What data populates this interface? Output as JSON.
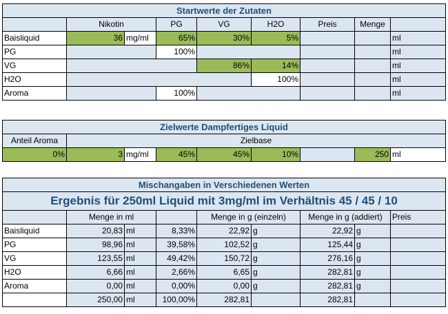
{
  "block1": {
    "title": "Startwerte der Zutaten",
    "headers": [
      "Nikotin",
      "PG",
      "VG",
      "H2O",
      "Preis",
      "Menge"
    ],
    "rows": [
      {
        "name": "Baisliquid",
        "nikotin": "36",
        "unit": "mg/ml",
        "pg": "65%",
        "vg": "30%",
        "h2o": "5%",
        "ml": "ml"
      },
      {
        "name": "PG",
        "pg": "100%",
        "ml": "ml"
      },
      {
        "name": "VG",
        "vg": "86%",
        "h2o": "14%",
        "ml": "ml"
      },
      {
        "name": "H2O",
        "h2o": "100%",
        "ml": "ml"
      },
      {
        "name": "Aroma",
        "pg": "100%",
        "ml": "ml"
      }
    ]
  },
  "block2": {
    "title": "Zielwerte Dampfertiges Liquid",
    "anteil_label": "Anteil Aroma",
    "zielbase_label": "Zielbase",
    "aroma": "0%",
    "nikotin": "3",
    "unit": "mg/ml",
    "pg": "45%",
    "vg": "45%",
    "h2o": "10%",
    "menge": "250",
    "ml": "ml"
  },
  "block3": {
    "title": "Mischangaben in Verschiedenen Werten",
    "result_title": "Ergebnis für 250ml Liquid mit 3mg/ml im Verhältnis 45 / 45 / 10",
    "headers": {
      "menge_ml": "Menge in ml",
      "menge_g": "Menge in g (einzeln)",
      "menge_g_add": "Menge in g (addiert)",
      "preis": "Preis"
    },
    "rows": [
      {
        "name": "Baisliquid",
        "ml_val": "20,83",
        "ml": "ml",
        "pct": "8,33%",
        "g": "22,92",
        "gu": "g",
        "gadd": "22,92",
        "gu2": "g"
      },
      {
        "name": "PG",
        "ml_val": "98,96",
        "ml": "ml",
        "pct": "39,58%",
        "g": "102,52",
        "gu": "g",
        "gadd": "125,44",
        "gu2": "g"
      },
      {
        "name": "VG",
        "ml_val": "123,55",
        "ml": "ml",
        "pct": "49,42%",
        "g": "150,72",
        "gu": "g",
        "gadd": "276,16",
        "gu2": "g"
      },
      {
        "name": "H2O",
        "ml_val": "6,66",
        "ml": "ml",
        "pct": "2,66%",
        "g": "6,65",
        "gu": "g",
        "gadd": "282,81",
        "gu2": "g"
      },
      {
        "name": "Aroma",
        "ml_val": "0,00",
        "ml": "ml",
        "pct": "0,00%",
        "g": "0,00",
        "gu": "g",
        "gadd": "282,81",
        "gu2": "g"
      },
      {
        "name": "",
        "ml_val": "250,00",
        "ml": "ml",
        "pct": "100,00%",
        "g": "282,81",
        "gu": "",
        "gadd": "282,81",
        "gu2": ""
      }
    ]
  },
  "colors": {
    "accent_green": "#9bbb59",
    "title_blue": "#1f4e79",
    "cell_bg": "#dce6f1"
  }
}
